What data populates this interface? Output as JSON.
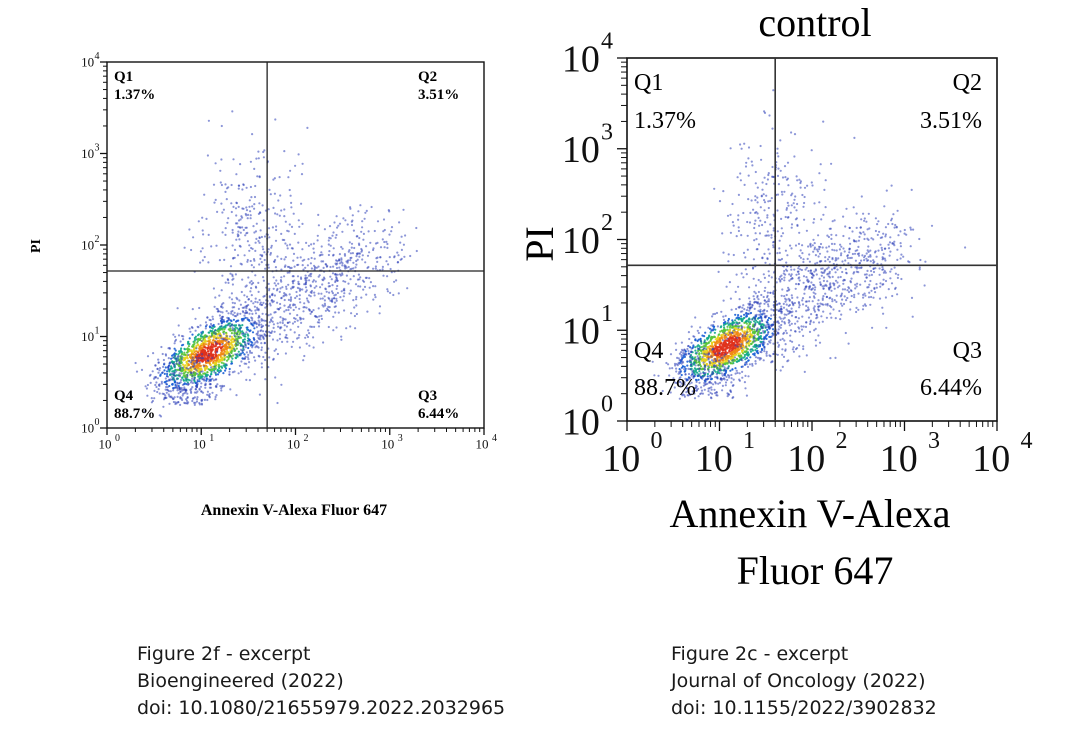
{
  "chart_data": [
    {
      "type": "scatter",
      "title": "",
      "xlabel": "Annexin V-Alexa Fluor 647",
      "ylabel": "PI",
      "x_scale": "log",
      "y_scale": "log",
      "xlim": [
        1,
        10000
      ],
      "ylim": [
        1,
        10000
      ],
      "x_tick_labels": [
        "10",
        "10",
        "10",
        "10",
        "10"
      ],
      "x_tick_exponents": [
        "0",
        "1",
        "2",
        "3",
        "4"
      ],
      "y_tick_labels": [
        "10",
        "10",
        "10",
        "10",
        "10"
      ],
      "y_tick_exponents": [
        "0",
        "1",
        "2",
        "3",
        "4"
      ],
      "gate": {
        "x": 50,
        "y": 52
      },
      "quadrants": [
        {
          "name": "Q1",
          "value": "1.37%"
        },
        {
          "name": "Q2",
          "value": "3.51%"
        },
        {
          "name": "Q3",
          "value": "6.44%"
        },
        {
          "name": "Q4",
          "value": "88.7%"
        }
      ],
      "grid": false,
      "colormap": "density (blue-green-yellow-red)"
    },
    {
      "type": "scatter",
      "title": "control",
      "xlabel_lines": [
        "Annexin V-Alexa",
        "Fluor 647"
      ],
      "ylabel": "PI",
      "x_scale": "log",
      "y_scale": "log",
      "xlim": [
        1,
        10000
      ],
      "ylim": [
        1,
        10000
      ],
      "x_tick_labels": [
        "10",
        "10",
        "10",
        "10",
        "10"
      ],
      "x_tick_exponents": [
        "0",
        "1",
        "2",
        "3",
        "4"
      ],
      "y_tick_labels": [
        "10",
        "10",
        "10",
        "10",
        "10"
      ],
      "y_tick_exponents": [
        "0",
        "1",
        "2",
        "3",
        "4"
      ],
      "gate": {
        "x": 40,
        "y": 52
      },
      "quadrants": [
        {
          "name": "Q1",
          "value": "1.37%"
        },
        {
          "name": "Q2",
          "value": "3.51%"
        },
        {
          "name": "Q3",
          "value": "6.44%"
        },
        {
          "name": "Q4",
          "value": "88.7%"
        }
      ],
      "grid": false,
      "colormap": "density (blue-green-yellow-red)"
    }
  ],
  "captions": {
    "left": [
      "Figure 2f - excerpt",
      "Bioengineered (2022)",
      "doi: 10.1080/21655979.2022.2032965"
    ],
    "right": [
      "Figure 2c - excerpt",
      "Journal of Oncology (2022)",
      "doi: 10.1155/2022/3902832"
    ]
  }
}
